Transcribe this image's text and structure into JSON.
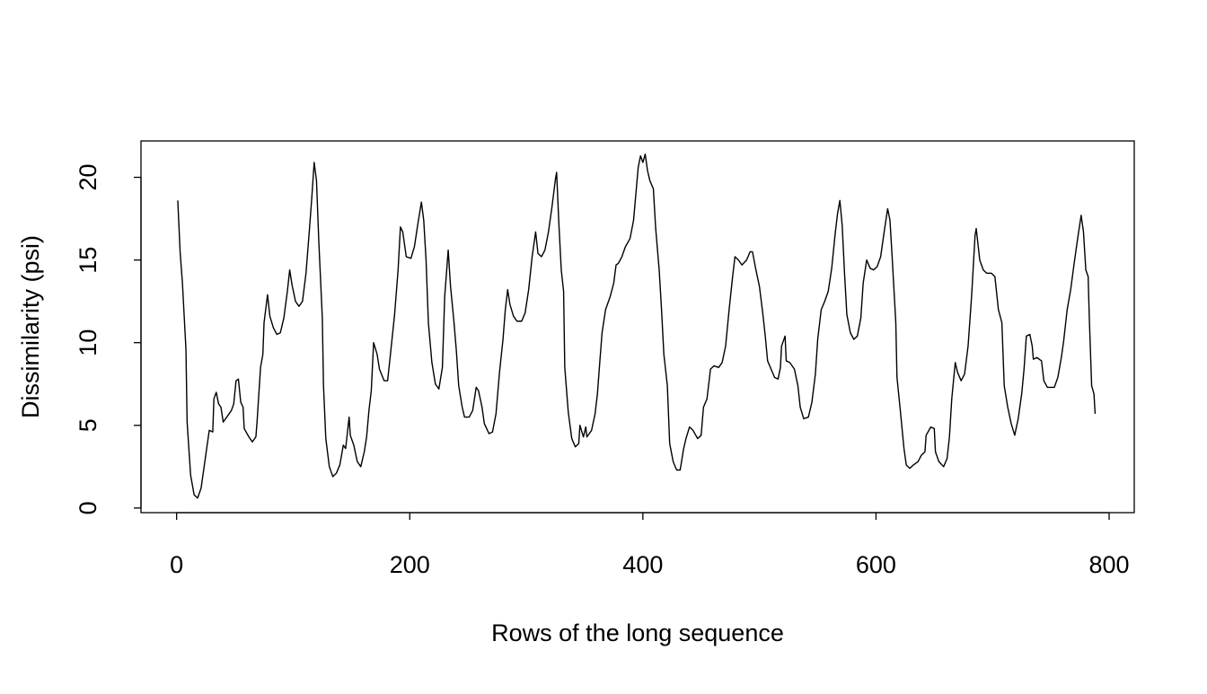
{
  "chart_data": {
    "type": "line",
    "xlabel": "Rows of the long sequence",
    "ylabel": "Dissimilarity (psi)",
    "color": "#000000",
    "xlim": [
      -30.56,
      821.56
    ],
    "ylim": [
      -0.28,
      22.2
    ],
    "xticks": [
      0,
      200,
      400,
      600,
      800
    ],
    "yticks": [
      0,
      5,
      10,
      15,
      20
    ],
    "x": [
      1,
      3,
      5,
      8,
      9,
      12,
      15,
      18,
      21,
      24,
      27,
      28,
      31,
      32,
      34,
      36,
      38,
      40,
      43,
      47,
      49,
      51,
      53,
      55,
      57,
      58,
      62,
      65,
      68,
      69,
      72,
      74,
      75,
      78,
      80,
      83,
      86,
      89,
      92,
      95,
      97,
      99,
      102,
      105,
      108,
      111,
      114,
      116,
      118,
      120,
      122,
      125,
      126,
      128,
      131,
      134,
      137,
      140,
      143,
      145,
      148,
      149,
      152,
      155,
      158,
      161,
      163,
      165,
      167,
      169,
      172,
      174,
      178,
      181,
      183,
      187,
      190,
      192,
      194,
      197,
      201,
      204,
      207,
      210,
      212,
      214,
      216,
      219,
      222,
      225,
      228,
      230,
      233,
      235,
      238,
      240,
      242,
      245,
      247,
      251,
      254,
      257,
      259,
      262,
      264,
      268,
      271,
      274,
      277,
      280,
      282,
      284,
      286,
      289,
      292,
      296,
      299,
      302,
      305,
      308,
      310,
      313,
      316,
      319,
      322,
      325,
      326,
      328,
      330,
      332,
      333,
      336,
      339,
      342,
      345,
      346,
      349,
      351,
      352,
      356,
      359,
      361,
      363,
      365,
      368,
      372,
      375,
      377,
      379,
      382,
      385,
      389,
      392,
      394,
      396,
      398,
      400,
      402,
      404,
      406,
      409,
      411,
      414,
      416,
      418,
      421,
      423,
      426,
      429,
      432,
      435,
      437,
      440,
      443,
      447,
      450,
      452,
      455,
      458,
      461,
      465,
      468,
      471,
      474,
      477,
      479,
      482,
      485,
      489,
      492,
      494,
      497,
      500,
      503,
      505,
      507,
      510,
      513,
      516,
      518,
      519,
      522,
      523,
      526,
      530,
      533,
      535,
      538,
      542,
      545,
      548,
      550,
      553,
      556,
      559,
      562,
      565,
      567,
      569,
      571,
      573,
      575,
      578,
      581,
      584,
      587,
      589,
      592,
      595,
      598,
      601,
      604,
      607,
      610,
      612,
      614,
      617,
      618,
      621,
      624,
      626,
      629,
      632,
      636,
      639,
      642,
      643,
      647,
      650,
      651,
      654,
      658,
      661,
      663,
      665,
      668,
      670,
      673,
      676,
      679,
      682,
      685,
      686,
      689,
      692,
      695,
      699,
      702,
      705,
      708,
      710,
      713,
      716,
      719,
      722,
      725,
      727,
      729,
      732,
      734,
      735,
      738,
      742,
      744,
      747,
      750,
      753,
      756,
      759,
      761,
      764,
      767,
      770,
      773,
      776,
      778,
      780,
      782,
      783,
      785,
      787,
      788
    ],
    "values": [
      18.6,
      15.5,
      13.6,
      9.6,
      5.2,
      2.0,
      0.8,
      0.6,
      1.2,
      2.7,
      4.2,
      4.7,
      4.6,
      6.6,
      7.0,
      6.3,
      6.1,
      5.2,
      5.5,
      5.9,
      6.3,
      7.7,
      7.8,
      6.4,
      6.1,
      4.8,
      4.3,
      4.0,
      4.3,
      5.2,
      8.5,
      9.3,
      11.2,
      12.9,
      11.6,
      10.9,
      10.5,
      10.6,
      11.5,
      13.1,
      14.4,
      13.5,
      12.5,
      12.2,
      12.5,
      14.2,
      16.9,
      18.8,
      20.9,
      19.8,
      16.1,
      11.5,
      7.4,
      4.2,
      2.5,
      1.9,
      2.1,
      2.6,
      3.8,
      3.6,
      5.5,
      4.4,
      3.8,
      2.8,
      2.5,
      3.4,
      4.3,
      5.9,
      7.1,
      10.0,
      9.3,
      8.4,
      7.7,
      7.7,
      9.0,
      11.7,
      14.4,
      17.0,
      16.7,
      15.2,
      15.1,
      15.8,
      17.2,
      18.5,
      17.4,
      15.0,
      11.2,
      8.8,
      7.5,
      7.2,
      8.5,
      12.8,
      15.6,
      13.4,
      11.2,
      9.5,
      7.4,
      6.1,
      5.5,
      5.5,
      5.9,
      7.3,
      7.1,
      6.1,
      5.1,
      4.5,
      4.6,
      5.7,
      8.2,
      10.2,
      12.0,
      13.2,
      12.3,
      11.6,
      11.3,
      11.3,
      11.8,
      13.2,
      15.2,
      16.7,
      15.4,
      15.2,
      15.6,
      16.7,
      18.2,
      19.9,
      20.3,
      17.1,
      14.4,
      13.1,
      8.5,
      5.8,
      4.2,
      3.7,
      3.9,
      5.0,
      4.3,
      4.9,
      4.3,
      4.7,
      5.7,
      6.9,
      8.8,
      10.6,
      12.0,
      12.8,
      13.6,
      14.7,
      14.8,
      15.2,
      15.8,
      16.3,
      17.4,
      19.0,
      20.6,
      21.3,
      20.9,
      21.4,
      20.4,
      19.8,
      19.3,
      16.9,
      14.4,
      12.0,
      9.3,
      7.4,
      3.9,
      2.8,
      2.3,
      2.3,
      3.6,
      4.2,
      4.9,
      4.7,
      4.2,
      4.4,
      6.1,
      6.6,
      8.4,
      8.6,
      8.5,
      8.8,
      9.8,
      12.0,
      14.0,
      15.2,
      15.0,
      14.7,
      15.0,
      15.5,
      15.5,
      14.4,
      13.4,
      11.7,
      10.4,
      8.9,
      8.4,
      7.9,
      7.8,
      8.5,
      9.8,
      10.4,
      8.9,
      8.8,
      8.4,
      7.4,
      6.1,
      5.4,
      5.5,
      6.4,
      8.1,
      10.2,
      12.0,
      12.5,
      13.1,
      14.5,
      16.6,
      17.8,
      18.6,
      17.1,
      14.2,
      11.7,
      10.6,
      10.2,
      10.4,
      11.5,
      13.6,
      15.0,
      14.5,
      14.4,
      14.6,
      15.2,
      16.7,
      18.1,
      17.4,
      15.0,
      11.2,
      7.9,
      5.8,
      3.6,
      2.6,
      2.4,
      2.6,
      2.8,
      3.2,
      3.4,
      4.4,
      4.9,
      4.8,
      3.4,
      2.8,
      2.5,
      3.0,
      4.3,
      6.6,
      8.8,
      8.2,
      7.7,
      8.1,
      9.8,
      12.8,
      16.5,
      16.9,
      15.0,
      14.4,
      14.2,
      14.2,
      14.0,
      12.0,
      11.2,
      7.4,
      6.1,
      5.1,
      4.4,
      5.4,
      6.9,
      8.4,
      10.4,
      10.5,
      9.8,
      9.0,
      9.1,
      8.9,
      7.7,
      7.3,
      7.3,
      7.3,
      7.9,
      9.1,
      10.1,
      12.0,
      13.2,
      14.8,
      16.3,
      17.7,
      16.7,
      14.4,
      14.0,
      11.5,
      7.4,
      6.9,
      5.7
    ]
  }
}
